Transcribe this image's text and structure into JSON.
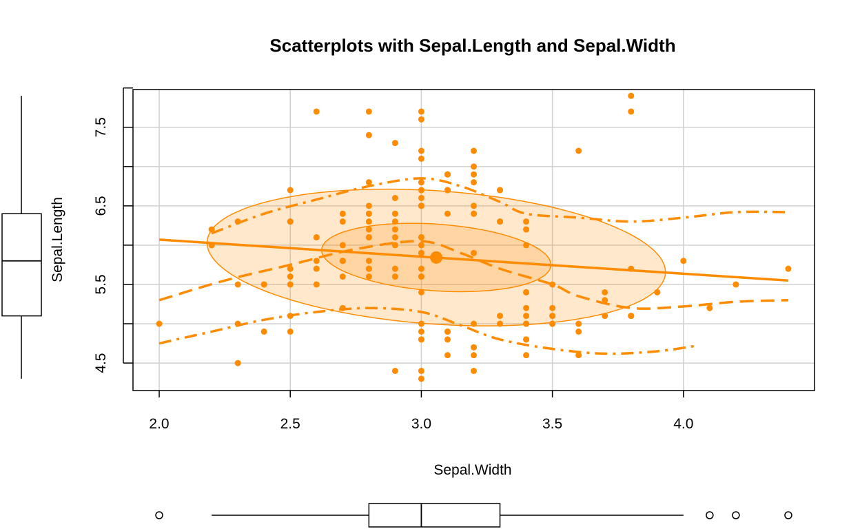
{
  "chart_data": {
    "type": "scatter",
    "title": "Scatterplots with Sepal.Length and Sepal.Width",
    "xlabel": "Sepal.Width",
    "ylabel": "Sepal.Length",
    "xlim": [
      1.9,
      4.5
    ],
    "ylim": [
      4.15,
      7.98
    ],
    "x_ticks": [
      "2.0",
      "2.5",
      "3.0",
      "3.5",
      "4.0"
    ],
    "y_ticks": [
      "4.5",
      "5.5",
      "6.5",
      "7.5"
    ],
    "grid": true,
    "color": "#ff8c00",
    "points": [
      [
        3.5,
        5.1
      ],
      [
        3.0,
        4.9
      ],
      [
        3.2,
        4.7
      ],
      [
        3.1,
        4.6
      ],
      [
        3.6,
        5.0
      ],
      [
        3.9,
        5.4
      ],
      [
        3.4,
        4.6
      ],
      [
        3.4,
        5.0
      ],
      [
        2.9,
        4.4
      ],
      [
        3.1,
        4.9
      ],
      [
        3.7,
        5.4
      ],
      [
        3.4,
        4.8
      ],
      [
        3.0,
        4.8
      ],
      [
        3.0,
        4.3
      ],
      [
        4.0,
        5.8
      ],
      [
        4.4,
        5.7
      ],
      [
        3.9,
        5.4
      ],
      [
        3.5,
        5.1
      ],
      [
        3.8,
        5.7
      ],
      [
        3.8,
        5.1
      ],
      [
        3.4,
        5.4
      ],
      [
        3.7,
        5.1
      ],
      [
        3.6,
        4.6
      ],
      [
        3.3,
        5.1
      ],
      [
        3.4,
        4.8
      ],
      [
        3.0,
        5.0
      ],
      [
        3.4,
        5.0
      ],
      [
        3.5,
        5.2
      ],
      [
        3.4,
        5.2
      ],
      [
        3.2,
        4.7
      ],
      [
        3.1,
        4.8
      ],
      [
        3.4,
        5.4
      ],
      [
        4.1,
        5.2
      ],
      [
        4.2,
        5.5
      ],
      [
        3.1,
        4.9
      ],
      [
        3.2,
        5.0
      ],
      [
        3.5,
        5.5
      ],
      [
        3.6,
        4.9
      ],
      [
        3.0,
        4.4
      ],
      [
        3.4,
        5.1
      ],
      [
        3.5,
        5.0
      ],
      [
        2.3,
        4.5
      ],
      [
        3.2,
        4.4
      ],
      [
        3.5,
        5.0
      ],
      [
        3.8,
        5.1
      ],
      [
        3.0,
        4.8
      ],
      [
        3.8,
        5.1
      ],
      [
        3.2,
        4.6
      ],
      [
        3.7,
        5.3
      ],
      [
        3.3,
        5.0
      ],
      [
        3.2,
        7.0
      ],
      [
        3.2,
        6.4
      ],
      [
        3.1,
        6.9
      ],
      [
        2.3,
        5.5
      ],
      [
        2.8,
        6.5
      ],
      [
        2.8,
        5.7
      ],
      [
        3.3,
        6.3
      ],
      [
        2.4,
        4.9
      ],
      [
        2.9,
        6.6
      ],
      [
        2.7,
        5.2
      ],
      [
        2.0,
        5.0
      ],
      [
        3.0,
        5.9
      ],
      [
        2.2,
        6.0
      ],
      [
        2.9,
        6.1
      ],
      [
        2.9,
        5.6
      ],
      [
        3.1,
        6.7
      ],
      [
        3.0,
        5.6
      ],
      [
        2.7,
        5.8
      ],
      [
        2.2,
        6.2
      ],
      [
        2.5,
        5.6
      ],
      [
        3.2,
        5.9
      ],
      [
        2.8,
        6.1
      ],
      [
        2.5,
        6.3
      ],
      [
        2.8,
        6.1
      ],
      [
        2.9,
        6.4
      ],
      [
        3.0,
        6.6
      ],
      [
        2.8,
        6.8
      ],
      [
        3.0,
        6.7
      ],
      [
        2.9,
        6.0
      ],
      [
        2.6,
        5.7
      ],
      [
        2.4,
        5.5
      ],
      [
        2.4,
        5.5
      ],
      [
        2.7,
        5.8
      ],
      [
        2.7,
        6.0
      ],
      [
        3.0,
        5.4
      ],
      [
        3.4,
        6.0
      ],
      [
        3.1,
        6.7
      ],
      [
        2.3,
        6.3
      ],
      [
        3.0,
        5.6
      ],
      [
        2.5,
        5.5
      ],
      [
        2.6,
        5.5
      ],
      [
        3.0,
        6.1
      ],
      [
        2.6,
        5.8
      ],
      [
        2.3,
        5.0
      ],
      [
        2.7,
        5.6
      ],
      [
        3.0,
        5.7
      ],
      [
        2.9,
        5.7
      ],
      [
        2.9,
        6.2
      ],
      [
        2.5,
        5.1
      ],
      [
        2.8,
        5.7
      ],
      [
        3.3,
        6.3
      ],
      [
        2.7,
        5.8
      ],
      [
        3.0,
        7.1
      ],
      [
        2.9,
        6.3
      ],
      [
        3.0,
        6.5
      ],
      [
        3.0,
        7.6
      ],
      [
        2.5,
        4.9
      ],
      [
        2.9,
        7.3
      ],
      [
        2.5,
        6.7
      ],
      [
        3.6,
        7.2
      ],
      [
        3.2,
        6.5
      ],
      [
        2.7,
        6.4
      ],
      [
        3.0,
        6.8
      ],
      [
        2.5,
        5.7
      ],
      [
        2.8,
        5.8
      ],
      [
        3.2,
        6.4
      ],
      [
        3.0,
        6.5
      ],
      [
        3.8,
        7.7
      ],
      [
        2.6,
        7.7
      ],
      [
        2.2,
        6.0
      ],
      [
        3.2,
        6.9
      ],
      [
        2.8,
        5.6
      ],
      [
        2.8,
        7.7
      ],
      [
        2.7,
        6.3
      ],
      [
        3.3,
        6.7
      ],
      [
        3.2,
        7.2
      ],
      [
        2.8,
        6.2
      ],
      [
        3.0,
        6.1
      ],
      [
        2.8,
        6.4
      ],
      [
        3.0,
        7.2
      ],
      [
        2.8,
        7.4
      ],
      [
        3.8,
        7.9
      ],
      [
        2.8,
        6.4
      ],
      [
        2.8,
        6.3
      ],
      [
        2.6,
        6.1
      ],
      [
        3.0,
        7.7
      ],
      [
        3.4,
        6.3
      ],
      [
        3.1,
        6.4
      ],
      [
        3.0,
        6.0
      ],
      [
        3.1,
        6.9
      ],
      [
        3.1,
        6.7
      ],
      [
        3.1,
        6.9
      ],
      [
        2.7,
        5.8
      ],
      [
        3.2,
        6.8
      ],
      [
        3.3,
        6.7
      ],
      [
        3.0,
        6.7
      ],
      [
        2.5,
        6.3
      ],
      [
        3.0,
        6.5
      ],
      [
        3.4,
        6.2
      ],
      [
        3.0,
        5.9
      ]
    ],
    "mean_point": [
      3.057,
      5.843
    ],
    "regression": {
      "x": [
        2.0,
        4.4
      ],
      "y": [
        6.07,
        5.55
      ]
    },
    "ellipses": [
      {
        "center": [
          3.057,
          5.843
        ],
        "rx": 0.447,
        "ry": 0.425,
        "angle_deg": -12
      },
      {
        "center": [
          3.057,
          5.843
        ],
        "rx": 0.894,
        "ry": 0.85,
        "angle_deg": -12
      }
    ],
    "loess_center": [
      [
        2.0,
        5.3
      ],
      [
        2.25,
        5.55
      ],
      [
        2.5,
        5.75
      ],
      [
        2.75,
        5.95
      ],
      [
        3.0,
        6.05
      ],
      [
        3.15,
        5.9
      ],
      [
        3.3,
        5.7
      ],
      [
        3.5,
        5.5
      ],
      [
        3.6,
        5.35
      ],
      [
        3.8,
        5.2
      ],
      [
        4.0,
        5.22
      ],
      [
        4.2,
        5.28
      ],
      [
        4.4,
        5.3
      ]
    ],
    "loess_upper": [
      [
        2.2,
        6.15
      ],
      [
        2.4,
        6.4
      ],
      [
        2.6,
        6.58
      ],
      [
        2.8,
        6.75
      ],
      [
        3.0,
        6.85
      ],
      [
        3.15,
        6.75
      ],
      [
        3.3,
        6.55
      ],
      [
        3.4,
        6.4
      ],
      [
        3.6,
        6.35
      ],
      [
        3.8,
        6.3
      ],
      [
        4.0,
        6.35
      ],
      [
        4.2,
        6.42
      ],
      [
        4.4,
        6.42
      ]
    ],
    "loess_lower": [
      [
        2.0,
        4.75
      ],
      [
        2.2,
        4.9
      ],
      [
        2.4,
        5.05
      ],
      [
        2.6,
        5.15
      ],
      [
        2.8,
        5.2
      ],
      [
        3.0,
        5.15
      ],
      [
        3.15,
        4.98
      ],
      [
        3.3,
        4.8
      ],
      [
        3.5,
        4.68
      ],
      [
        3.7,
        4.62
      ],
      [
        3.9,
        4.65
      ],
      [
        4.05,
        4.72
      ]
    ],
    "x_boxplot": {
      "whisker_low": 2.2,
      "q1": 2.8,
      "median": 3.0,
      "q3": 3.3,
      "whisker_high": 4.0,
      "outliers": [
        2.0,
        4.1,
        4.2,
        4.4
      ]
    },
    "y_boxplot": {
      "whisker_low": 4.3,
      "q1": 5.1,
      "median": 5.8,
      "q3": 6.4,
      "whisker_high": 7.9,
      "outliers": []
    }
  }
}
